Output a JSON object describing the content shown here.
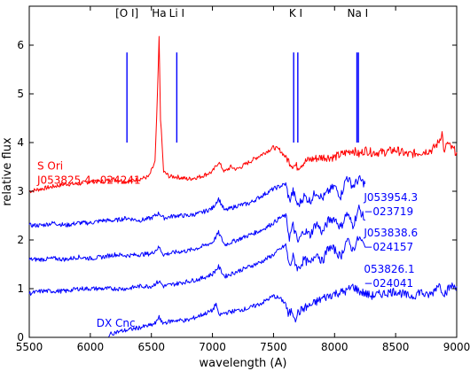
{
  "chart_data": {
    "type": "line",
    "title": "",
    "xlabel": "wavelength (A)",
    "ylabel": "relative flux",
    "xlim": [
      5500,
      9000
    ],
    "ylim": [
      0,
      6.8
    ],
    "x_ticks": [
      5500,
      6000,
      6500,
      7000,
      7500,
      8000,
      8500,
      9000
    ],
    "y_ticks": [
      0,
      1,
      2,
      3,
      4,
      5,
      6
    ],
    "grid": false,
    "legend": "none",
    "spectral_lines": [
      {
        "label": "[O I]",
        "wavelengths": [
          6300
        ],
        "label_at": 6300
      },
      {
        "label": "Ha",
        "wavelengths": [],
        "label_at": 6563
      },
      {
        "label": "Li I",
        "wavelengths": [
          6708
        ],
        "label_at": 6708
      },
      {
        "label": "K I",
        "wavelengths": [
          7665,
          7699
        ],
        "label_at": 7682
      },
      {
        "label": "Na I",
        "wavelengths": [
          8183,
          8195
        ],
        "label_at": 8189
      }
    ],
    "line_marker_range": [
      4.0,
      5.85
    ],
    "line_color": "#0000ff",
    "series": [
      {
        "name": "S Ori J053825.4−024241",
        "color": "#ff0000",
        "label_lines": [
          "S Ori",
          "J053825.4−024241"
        ],
        "label_anchor": [
          5565,
          3.45
        ],
        "x": [
          5500,
          5600,
          5700,
          5800,
          5900,
          6000,
          6100,
          6200,
          6300,
          6400,
          6480,
          6530,
          6550,
          6563,
          6575,
          6600,
          6650,
          6700,
          6800,
          6900,
          7000,
          7050,
          7100,
          7150,
          7200,
          7300,
          7400,
          7500,
          7550,
          7600,
          7650,
          7700,
          7750,
          7800,
          7900,
          8000,
          8100,
          8150,
          8200,
          8250,
          8300,
          8400,
          8500,
          8600,
          8700,
          8800,
          8850,
          8880,
          8900,
          8920,
          8950,
          9000
        ],
        "y": [
          3.0,
          3.05,
          3.1,
          3.15,
          3.15,
          3.2,
          3.2,
          3.25,
          3.2,
          3.25,
          3.3,
          3.6,
          5.0,
          6.15,
          4.5,
          3.4,
          3.3,
          3.3,
          3.25,
          3.3,
          3.4,
          3.6,
          3.4,
          3.5,
          3.45,
          3.6,
          3.75,
          3.9,
          3.85,
          3.7,
          3.55,
          3.5,
          3.6,
          3.65,
          3.7,
          3.7,
          3.8,
          3.85,
          3.75,
          3.85,
          3.8,
          3.8,
          3.85,
          3.75,
          3.8,
          3.85,
          4.0,
          4.2,
          3.75,
          4.0,
          3.9,
          3.8
        ]
      },
      {
        "name": "J053954.3−023719",
        "color": "#0000ff",
        "label_lines": [
          "J053954.3",
          "−023719"
        ],
        "label_anchor": [
          8240,
          2.8
        ],
        "x": [
          5500,
          5600,
          5700,
          5800,
          5900,
          6000,
          6100,
          6200,
          6300,
          6400,
          6500,
          6563,
          6600,
          6700,
          6800,
          6900,
          7000,
          7050,
          7100,
          7200,
          7300,
          7400,
          7500,
          7550,
          7600,
          7630,
          7660,
          7700,
          7750,
          7800,
          7850,
          7900,
          7950,
          8000,
          8050,
          8100,
          8150,
          8200,
          8250
        ],
        "y": [
          2.3,
          2.3,
          2.35,
          2.3,
          2.35,
          2.35,
          2.4,
          2.4,
          2.45,
          2.4,
          2.45,
          2.55,
          2.45,
          2.5,
          2.5,
          2.55,
          2.65,
          2.85,
          2.6,
          2.7,
          2.75,
          2.9,
          3.05,
          3.1,
          3.15,
          2.8,
          3.0,
          2.7,
          2.9,
          2.8,
          3.0,
          2.85,
          3.0,
          3.1,
          2.9,
          3.3,
          3.1,
          3.25,
          3.15
        ]
      },
      {
        "name": "J053838.6−024157",
        "color": "#0000ff",
        "label_lines": [
          "J053838.6",
          "−024157"
        ],
        "label_anchor": [
          8240,
          2.07
        ],
        "x": [
          5500,
          5600,
          5700,
          5800,
          5900,
          6000,
          6100,
          6200,
          6300,
          6400,
          6500,
          6563,
          6600,
          6700,
          6800,
          6900,
          7000,
          7050,
          7100,
          7200,
          7300,
          7400,
          7500,
          7550,
          7600,
          7630,
          7660,
          7700,
          7750,
          7800,
          7850,
          7900,
          7950,
          8000,
          8050,
          8100,
          8150,
          8200,
          8250
        ],
        "y": [
          1.6,
          1.6,
          1.62,
          1.6,
          1.65,
          1.62,
          1.65,
          1.7,
          1.68,
          1.7,
          1.72,
          1.85,
          1.7,
          1.75,
          1.78,
          1.85,
          1.95,
          2.15,
          1.9,
          2.0,
          2.1,
          2.2,
          2.35,
          2.45,
          2.5,
          2.05,
          2.3,
          1.95,
          2.2,
          2.1,
          2.35,
          2.15,
          2.4,
          2.45,
          2.25,
          2.55,
          2.3,
          2.65,
          2.4
        ]
      },
      {
        "name": "053826.1−024041",
        "color": "#0000ff",
        "label_lines": [
          "053826.1",
          "−024041"
        ],
        "label_anchor": [
          8240,
          1.33
        ],
        "x": [
          5500,
          5600,
          5700,
          5800,
          5900,
          6000,
          6100,
          6200,
          6300,
          6400,
          6500,
          6563,
          6600,
          6700,
          6800,
          6900,
          7000,
          7050,
          7100,
          7200,
          7300,
          7400,
          7500,
          7550,
          7600,
          7630,
          7660,
          7700,
          7750,
          7800,
          7850,
          7900,
          7950,
          8000,
          8050,
          8100,
          8150,
          8200,
          8250
        ],
        "y": [
          0.9,
          0.95,
          0.95,
          0.95,
          1.0,
          1.0,
          1.0,
          1.0,
          1.0,
          1.05,
          1.05,
          1.15,
          1.05,
          1.1,
          1.15,
          1.2,
          1.3,
          1.45,
          1.25,
          1.35,
          1.45,
          1.55,
          1.7,
          1.8,
          1.9,
          1.45,
          1.65,
          1.4,
          1.6,
          1.5,
          1.75,
          1.55,
          1.85,
          1.8,
          1.65,
          2.0,
          1.8,
          2.05,
          1.85
        ]
      },
      {
        "name": "DX Cnc",
        "color": "#0000ff",
        "label_lines": [
          "DX Cnc"
        ],
        "label_anchor": [
          6050,
          0.22
        ],
        "x": [
          6150,
          6200,
          6300,
          6400,
          6500,
          6540,
          6563,
          6580,
          6600,
          6700,
          6800,
          6900,
          7000,
          7030,
          7050,
          7100,
          7200,
          7300,
          7400,
          7500,
          7550,
          7600,
          7620,
          7650,
          7680,
          7700,
          7750,
          7800,
          7900,
          8000,
          8100,
          8150,
          8200,
          8250,
          8300,
          8400,
          8500,
          8600,
          8650,
          8700,
          8750,
          8800,
          8850,
          8900,
          8950,
          9000
        ],
        "y": [
          0.05,
          0.1,
          0.15,
          0.2,
          0.25,
          0.3,
          0.45,
          0.3,
          0.3,
          0.35,
          0.35,
          0.45,
          0.55,
          0.7,
          0.45,
          0.5,
          0.55,
          0.6,
          0.7,
          0.85,
          0.8,
          0.7,
          0.45,
          0.55,
          0.4,
          0.5,
          0.6,
          0.65,
          0.8,
          0.9,
          0.95,
          1.05,
          0.95,
          0.9,
          0.85,
          0.9,
          0.95,
          0.85,
          0.85,
          0.95,
          0.85,
          0.9,
          1.1,
          0.9,
          1.05,
          1.05
        ]
      }
    ]
  }
}
